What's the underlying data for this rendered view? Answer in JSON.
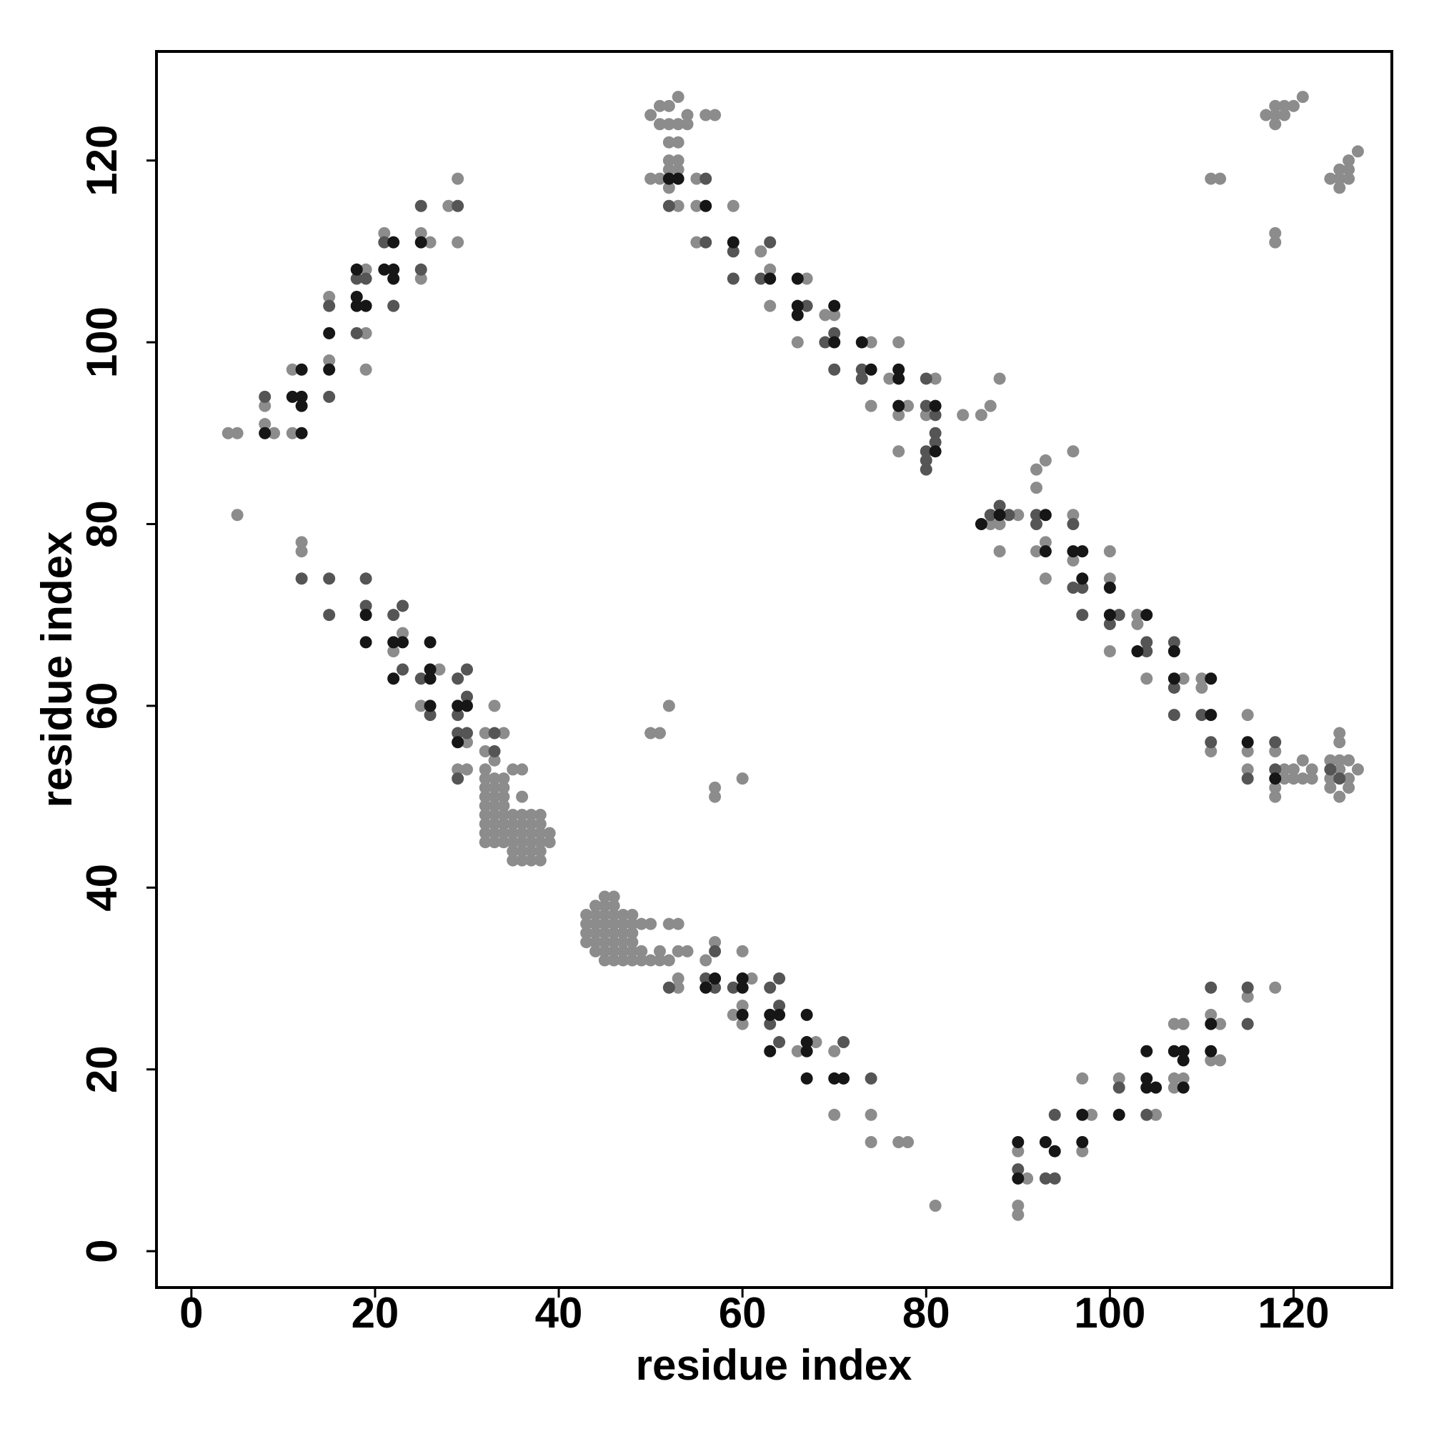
{
  "chart_data": {
    "type": "scatter",
    "xlabel": "residue index",
    "ylabel": "residue index",
    "xlim": [
      -3.8,
      130.7
    ],
    "ylim": [
      -4,
      132
    ],
    "xticks": [
      0,
      20,
      40,
      60,
      80,
      100,
      120
    ],
    "yticks": [
      0,
      20,
      40,
      60,
      80,
      100,
      120
    ],
    "series": [
      {
        "color": "#8c8c8c",
        "x": [
          4,
          5,
          9,
          11,
          8,
          8,
          11,
          15,
          15,
          19,
          19,
          19,
          21,
          26,
          25,
          25,
          28,
          29,
          29,
          5,
          12,
          12,
          22,
          23,
          27,
          25,
          30,
          29,
          30,
          33,
          32,
          34,
          32,
          32,
          33,
          35,
          36,
          36,
          39,
          39,
          32,
          32,
          32,
          32,
          32,
          32,
          32,
          32,
          33,
          33,
          33,
          33,
          33,
          33,
          33,
          33,
          34,
          34,
          34,
          34,
          34,
          34,
          34,
          34,
          35,
          35,
          35,
          35,
          35,
          35,
          36,
          36,
          36,
          36,
          36,
          36,
          37,
          37,
          37,
          37,
          37,
          37,
          38,
          38,
          38,
          38,
          38,
          38,
          43,
          43,
          43,
          43,
          44,
          44,
          44,
          44,
          44,
          44,
          45,
          45,
          45,
          45,
          45,
          45,
          45,
          45,
          46,
          46,
          46,
          46,
          46,
          46,
          46,
          46,
          47,
          47,
          47,
          47,
          47,
          47,
          48,
          48,
          48,
          48,
          48,
          48,
          49,
          50,
          52,
          53,
          49,
          50,
          51,
          52,
          53,
          54,
          49,
          51,
          53,
          53,
          57,
          56,
          61,
          60,
          59,
          60,
          60,
          66,
          68,
          70,
          70,
          74,
          74,
          77,
          78,
          81,
          90,
          91,
          90,
          90,
          98,
          97,
          97,
          101,
          105,
          107,
          108,
          107,
          108,
          107,
          111,
          112,
          111,
          112,
          115,
          118,
          50,
          51,
          52,
          53,
          51,
          52,
          53,
          54,
          54,
          56,
          57,
          52,
          53,
          52,
          53,
          52,
          53,
          52,
          50,
          51,
          53,
          55,
          55,
          55,
          59,
          62,
          63,
          63,
          67,
          66,
          69,
          70,
          74,
          74,
          76,
          77,
          78,
          77,
          77,
          81,
          80,
          84,
          86,
          87,
          88,
          87,
          90,
          88,
          88,
          92,
          93,
          92,
          93,
          92,
          93,
          96,
          96,
          96,
          100,
          100,
          100,
          103,
          103,
          104,
          108,
          110,
          110,
          111,
          115,
          115,
          115,
          118,
          118,
          118,
          119,
          119,
          120,
          120,
          121,
          121,
          122,
          122,
          124,
          124,
          124,
          125,
          125,
          125,
          125,
          125,
          126,
          126,
          126,
          127,
          117,
          118,
          118,
          118,
          119,
          119,
          120,
          121,
          111,
          112,
          118,
          118,
          124,
          125,
          125,
          125,
          126,
          126,
          126,
          127,
          50,
          51,
          52,
          57,
          57,
          60
        ],
        "values": [
          90,
          90,
          90,
          90,
          91,
          93,
          97,
          98,
          105,
          101,
          108,
          97,
          112,
          111,
          112,
          107,
          115,
          118,
          111,
          81,
          78,
          77,
          66,
          68,
          64,
          60,
          56,
          53,
          53,
          60,
          57,
          57,
          55,
          53,
          54,
          53,
          53,
          50,
          46,
          45,
          45,
          46,
          47,
          48,
          49,
          50,
          51,
          52,
          45,
          46,
          47,
          48,
          49,
          50,
          51,
          52,
          45,
          46,
          47,
          48,
          49,
          50,
          51,
          52,
          43,
          44,
          45,
          46,
          47,
          48,
          43,
          44,
          45,
          46,
          47,
          48,
          43,
          44,
          45,
          46,
          47,
          48,
          43,
          44,
          45,
          46,
          47,
          48,
          34,
          35,
          36,
          37,
          33,
          34,
          35,
          36,
          37,
          38,
          32,
          33,
          34,
          35,
          36,
          37,
          38,
          39,
          32,
          33,
          34,
          35,
          36,
          37,
          38,
          39,
          32,
          33,
          34,
          35,
          36,
          37,
          32,
          33,
          34,
          35,
          36,
          37,
          36,
          36,
          36,
          36,
          33,
          32,
          33,
          32,
          33,
          33,
          32,
          32,
          29,
          30,
          34,
          32,
          30,
          27,
          26,
          25,
          33,
          22,
          23,
          22,
          15,
          15,
          12,
          12,
          12,
          5,
          11,
          8,
          5,
          4,
          15,
          11,
          19,
          19,
          15,
          25,
          25,
          19,
          19,
          18,
          26,
          25,
          21,
          21,
          28,
          29,
          125,
          126,
          126,
          127,
          124,
          124,
          124,
          125,
          124,
          125,
          125,
          122,
          122,
          120,
          120,
          119,
          119,
          117,
          118,
          118,
          115,
          118,
          115,
          111,
          115,
          110,
          108,
          104,
          107,
          100,
          103,
          103,
          100,
          93,
          96,
          100,
          93,
          92,
          88,
          96,
          92,
          92,
          92,
          93,
          96,
          80,
          81,
          80,
          77,
          86,
          87,
          84,
          78,
          77,
          74,
          88,
          81,
          76,
          77,
          74,
          66,
          70,
          69,
          63,
          63,
          63,
          62,
          55,
          59,
          55,
          53,
          55,
          51,
          50,
          53,
          52,
          53,
          52,
          54,
          52,
          53,
          52,
          54,
          52,
          51,
          57,
          56,
          54,
          53,
          50,
          54,
          52,
          51,
          53,
          125,
          124,
          125,
          126,
          125,
          126,
          126,
          127,
          118,
          118,
          112,
          111,
          118,
          119,
          118,
          117,
          120,
          119,
          118,
          121,
          57,
          57,
          60,
          51,
          50,
          52
        ]
      },
      {
        "color": "#555555",
        "x": [
          8,
          15,
          15,
          18,
          18,
          19,
          22,
          21,
          25,
          25,
          29,
          12,
          15,
          15,
          19,
          19,
          22,
          23,
          23,
          25,
          26,
          29,
          30,
          30,
          29,
          29,
          30,
          29,
          33,
          33,
          52,
          57,
          56,
          57,
          59,
          63,
          64,
          63,
          64,
          64,
          71,
          74,
          90,
          93,
          94,
          94,
          101,
          104,
          111,
          115,
          115,
          52,
          56,
          56,
          59,
          59,
          63,
          62,
          67,
          69,
          70,
          70,
          73,
          73,
          80,
          80,
          81,
          81,
          81,
          80,
          80,
          80,
          87,
          88,
          89,
          92,
          92,
          96,
          96,
          97,
          97,
          101,
          100,
          104,
          104,
          107,
          107,
          107,
          110,
          111,
          115,
          118,
          118,
          124,
          125
        ],
        "values": [
          94,
          94,
          104,
          101,
          107,
          107,
          104,
          111,
          115,
          108,
          115,
          74,
          74,
          70,
          74,
          71,
          70,
          71,
          64,
          63,
          59,
          63,
          64,
          61,
          59,
          57,
          57,
          52,
          57,
          55,
          29,
          33,
          30,
          29,
          29,
          29,
          30,
          25,
          27,
          23,
          23,
          19,
          9,
          8,
          8,
          15,
          18,
          15,
          29,
          29,
          25,
          115,
          118,
          111,
          110,
          107,
          111,
          107,
          104,
          100,
          101,
          97,
          97,
          96,
          96,
          93,
          92,
          90,
          89,
          88,
          87,
          86,
          81,
          82,
          81,
          81,
          80,
          80,
          73,
          73,
          70,
          70,
          69,
          66,
          67,
          67,
          62,
          59,
          59,
          56,
          52,
          56,
          53,
          53,
          52
        ]
      },
      {
        "color": "#161616",
        "x": [
          8,
          12,
          11,
          12,
          12,
          12,
          15,
          15,
          18,
          19,
          18,
          18,
          21,
          22,
          22,
          22,
          25,
          19,
          19,
          22,
          23,
          22,
          26,
          26,
          26,
          26,
          29,
          30,
          29,
          57,
          56,
          60,
          60,
          60,
          63,
          64,
          63,
          67,
          67,
          67,
          67,
          70,
          71,
          90,
          90,
          93,
          94,
          97,
          97,
          101,
          104,
          104,
          105,
          104,
          107,
          108,
          108,
          108,
          111,
          111,
          52,
          53,
          56,
          59,
          63,
          66,
          66,
          66,
          70,
          70,
          73,
          74,
          77,
          77,
          77,
          81,
          81,
          86,
          88,
          93,
          93,
          96,
          97,
          97,
          100,
          100,
          104,
          103,
          107,
          107,
          111,
          111,
          115,
          118
        ],
        "values": [
          90,
          90,
          94,
          94,
          93,
          97,
          97,
          101,
          104,
          104,
          105,
          108,
          108,
          108,
          107,
          111,
          111,
          70,
          67,
          67,
          67,
          63,
          67,
          64,
          63,
          60,
          60,
          60,
          56,
          30,
          29,
          30,
          29,
          26,
          26,
          26,
          22,
          23,
          22,
          26,
          19,
          19,
          19,
          12,
          8,
          12,
          11,
          15,
          12,
          15,
          22,
          19,
          18,
          18,
          22,
          22,
          21,
          18,
          25,
          22,
          118,
          118,
          115,
          111,
          107,
          107,
          104,
          103,
          104,
          100,
          100,
          97,
          97,
          96,
          93,
          93,
          88,
          80,
          81,
          81,
          77,
          77,
          77,
          74,
          73,
          70,
          70,
          66,
          66,
          63,
          63,
          59,
          56,
          52
        ]
      }
    ]
  }
}
